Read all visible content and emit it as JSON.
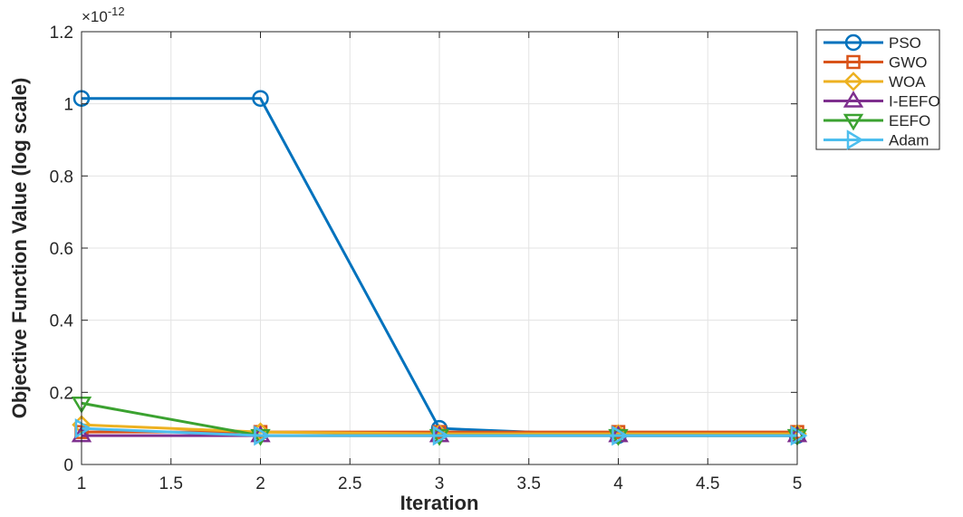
{
  "chart_data": {
    "type": "line",
    "xlabel": "Iteration",
    "ylabel": "Objective Function Value (log scale)",
    "exponent_label": "×10",
    "exponent_power": "-12",
    "x": [
      1,
      2,
      3,
      4,
      5
    ],
    "xlim": [
      1,
      5
    ],
    "ylim": [
      0,
      1.2
    ],
    "y_scale_factor": 1e-12,
    "x_ticks": [
      "1",
      "1.5",
      "2",
      "2.5",
      "3",
      "3.5",
      "4",
      "4.5",
      "5"
    ],
    "x_tick_values": [
      1,
      1.5,
      2,
      2.5,
      3,
      3.5,
      4,
      4.5,
      5
    ],
    "y_ticks": [
      "0",
      "0.2",
      "0.4",
      "0.6",
      "0.8",
      "1",
      "1.2"
    ],
    "y_tick_values": [
      0,
      0.2,
      0.4,
      0.6,
      0.8,
      1.0,
      1.2
    ],
    "grid": true,
    "legend_position": "outside-top-right",
    "series": [
      {
        "name": "PSO",
        "color": "#0072BD",
        "marker": "circle",
        "values": [
          1.015,
          1.015,
          0.1,
          0.08,
          0.08
        ]
      },
      {
        "name": "GWO",
        "color": "#D95319",
        "marker": "square",
        "values": [
          0.09,
          0.09,
          0.09,
          0.09,
          0.09
        ]
      },
      {
        "name": "WOA",
        "color": "#EDB120",
        "marker": "diamond",
        "values": [
          0.11,
          0.09,
          0.085,
          0.085,
          0.085
        ]
      },
      {
        "name": "I-EEFO",
        "color": "#7E2F8E",
        "marker": "triangle-up",
        "values": [
          0.08,
          0.08,
          0.08,
          0.08,
          0.08
        ]
      },
      {
        "name": "EEFO",
        "color": "#3BA230",
        "marker": "triangle-down",
        "values": [
          0.17,
          0.08,
          0.08,
          0.08,
          0.08
        ]
      },
      {
        "name": "Adam",
        "color": "#4DBEEE",
        "marker": "triangle-right",
        "values": [
          0.1,
          0.08,
          0.08,
          0.08,
          0.08
        ]
      }
    ]
  }
}
